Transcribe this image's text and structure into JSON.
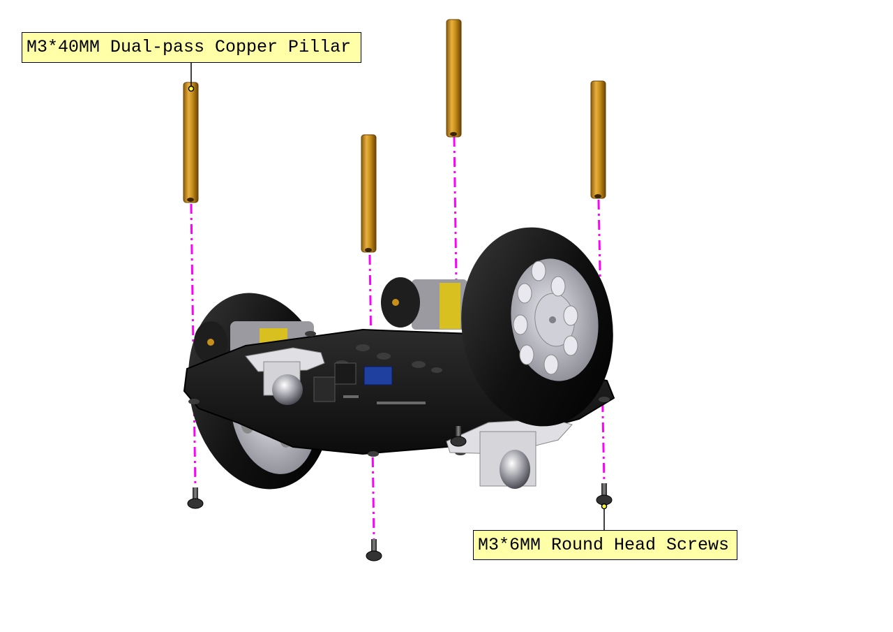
{
  "labels": {
    "pillar": "M3*40MM Dual-pass Copper Pillar",
    "screw": "M3*6MM Round Head Screws"
  },
  "colors": {
    "callout_fill": "#ffffa8",
    "guide_line": "#ff00ff",
    "brass": "#c8901a",
    "chassis": "#1a1a1a",
    "tire": "#111111",
    "hub": "#b8b8c0",
    "motor_yellow": "#d8c020",
    "module_blue": "#2040a0"
  },
  "parts": {
    "pillar_count": 4,
    "screw_count": 4
  }
}
